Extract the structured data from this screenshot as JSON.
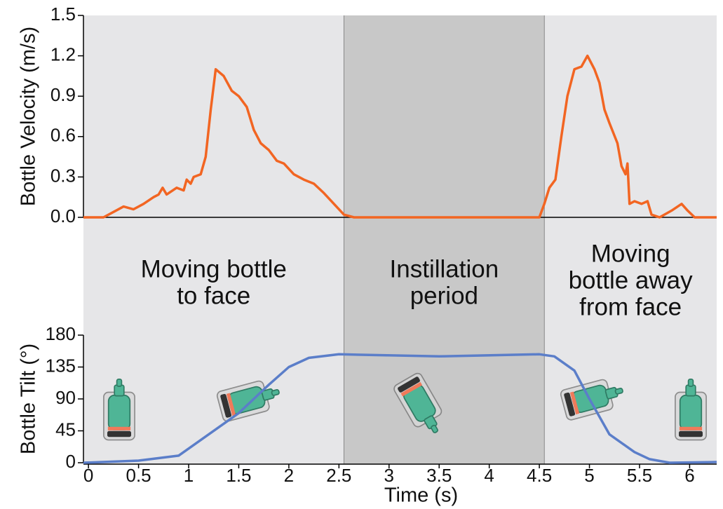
{
  "chart_data": [
    {
      "type": "line",
      "ylabel": "Bottle Velocity (m/s)",
      "xlim": [
        -0.05,
        6.27
      ],
      "ylim": [
        0,
        1.5
      ],
      "yticks": [
        {
          "value": 0,
          "label": "0.0"
        },
        0.3,
        0.6,
        0.9,
        1.2,
        1.5
      ],
      "zero_line": true,
      "regions": [
        {
          "x0": -0.05,
          "x1": 2.55,
          "color": "#e6e6e8",
          "label": [
            "Moving bottle",
            "to face"
          ]
        },
        {
          "x0": 2.55,
          "x1": 4.55,
          "color": "#c8c8c8",
          "label": [
            "Instillation",
            "period"
          ]
        },
        {
          "x0": 4.55,
          "x1": 6.27,
          "color": "#e6e6e8",
          "label": [
            "Moving",
            "bottle away",
            "from face"
          ]
        }
      ],
      "series": [
        {
          "color": "#f26522",
          "x": [
            -0.05,
            0.15,
            0.25,
            0.35,
            0.45,
            0.55,
            0.65,
            0.7,
            0.74,
            0.78,
            0.88,
            0.95,
            0.98,
            1.02,
            1.05,
            1.12,
            1.17,
            1.22,
            1.27,
            1.35,
            1.43,
            1.5,
            1.58,
            1.65,
            1.72,
            1.8,
            1.88,
            1.95,
            2.05,
            2.15,
            2.25,
            2.35,
            2.45,
            2.55,
            2.65,
            4.5,
            4.55,
            4.6,
            4.66,
            4.72,
            4.78,
            4.85,
            4.92,
            4.98,
            5.05,
            5.1,
            5.15,
            5.2,
            5.28,
            5.32,
            5.36,
            5.38,
            5.4,
            5.45,
            5.52,
            5.58,
            5.62,
            5.7,
            5.82,
            5.92,
            5.98,
            6.05,
            6.27
          ],
          "values": [
            0,
            0,
            0.04,
            0.08,
            0.06,
            0.1,
            0.15,
            0.17,
            0.22,
            0.17,
            0.22,
            0.2,
            0.28,
            0.25,
            0.3,
            0.32,
            0.45,
            0.8,
            1.1,
            1.05,
            0.94,
            0.9,
            0.82,
            0.65,
            0.55,
            0.5,
            0.42,
            0.4,
            0.32,
            0.28,
            0.25,
            0.18,
            0.1,
            0.02,
            0,
            0,
            0.1,
            0.22,
            0.28,
            0.6,
            0.9,
            1.1,
            1.12,
            1.2,
            1.1,
            1.0,
            0.8,
            0.7,
            0.55,
            0.38,
            0.32,
            0.4,
            0.1,
            0.12,
            0.1,
            0.12,
            0.02,
            0,
            0.05,
            0.1,
            0.05,
            0,
            0
          ]
        }
      ]
    },
    {
      "type": "line",
      "ylabel": "Bottle Tilt (°)",
      "xlabel": "Time (s)",
      "xlim": [
        -0.05,
        6.27
      ],
      "ylim": [
        0,
        180
      ],
      "yticks": [
        0,
        45,
        90,
        135,
        180
      ],
      "xticks": [
        0,
        0.5,
        1,
        1.5,
        2,
        2.5,
        3,
        3.5,
        4,
        4.5,
        5,
        5.5,
        6
      ],
      "series": [
        {
          "color": "#5b7ec9",
          "x": [
            -0.05,
            0.5,
            0.9,
            1.2,
            1.5,
            1.8,
            2.0,
            2.2,
            2.5,
            3.5,
            4.5,
            4.65,
            4.85,
            5.0,
            5.2,
            5.45,
            5.6,
            5.8,
            6.27
          ],
          "values": [
            0,
            3,
            10,
            40,
            70,
            110,
            135,
            148,
            153,
            150,
            153,
            150,
            130,
            90,
            40,
            15,
            5,
            0,
            1
          ]
        }
      ]
    }
  ]
}
